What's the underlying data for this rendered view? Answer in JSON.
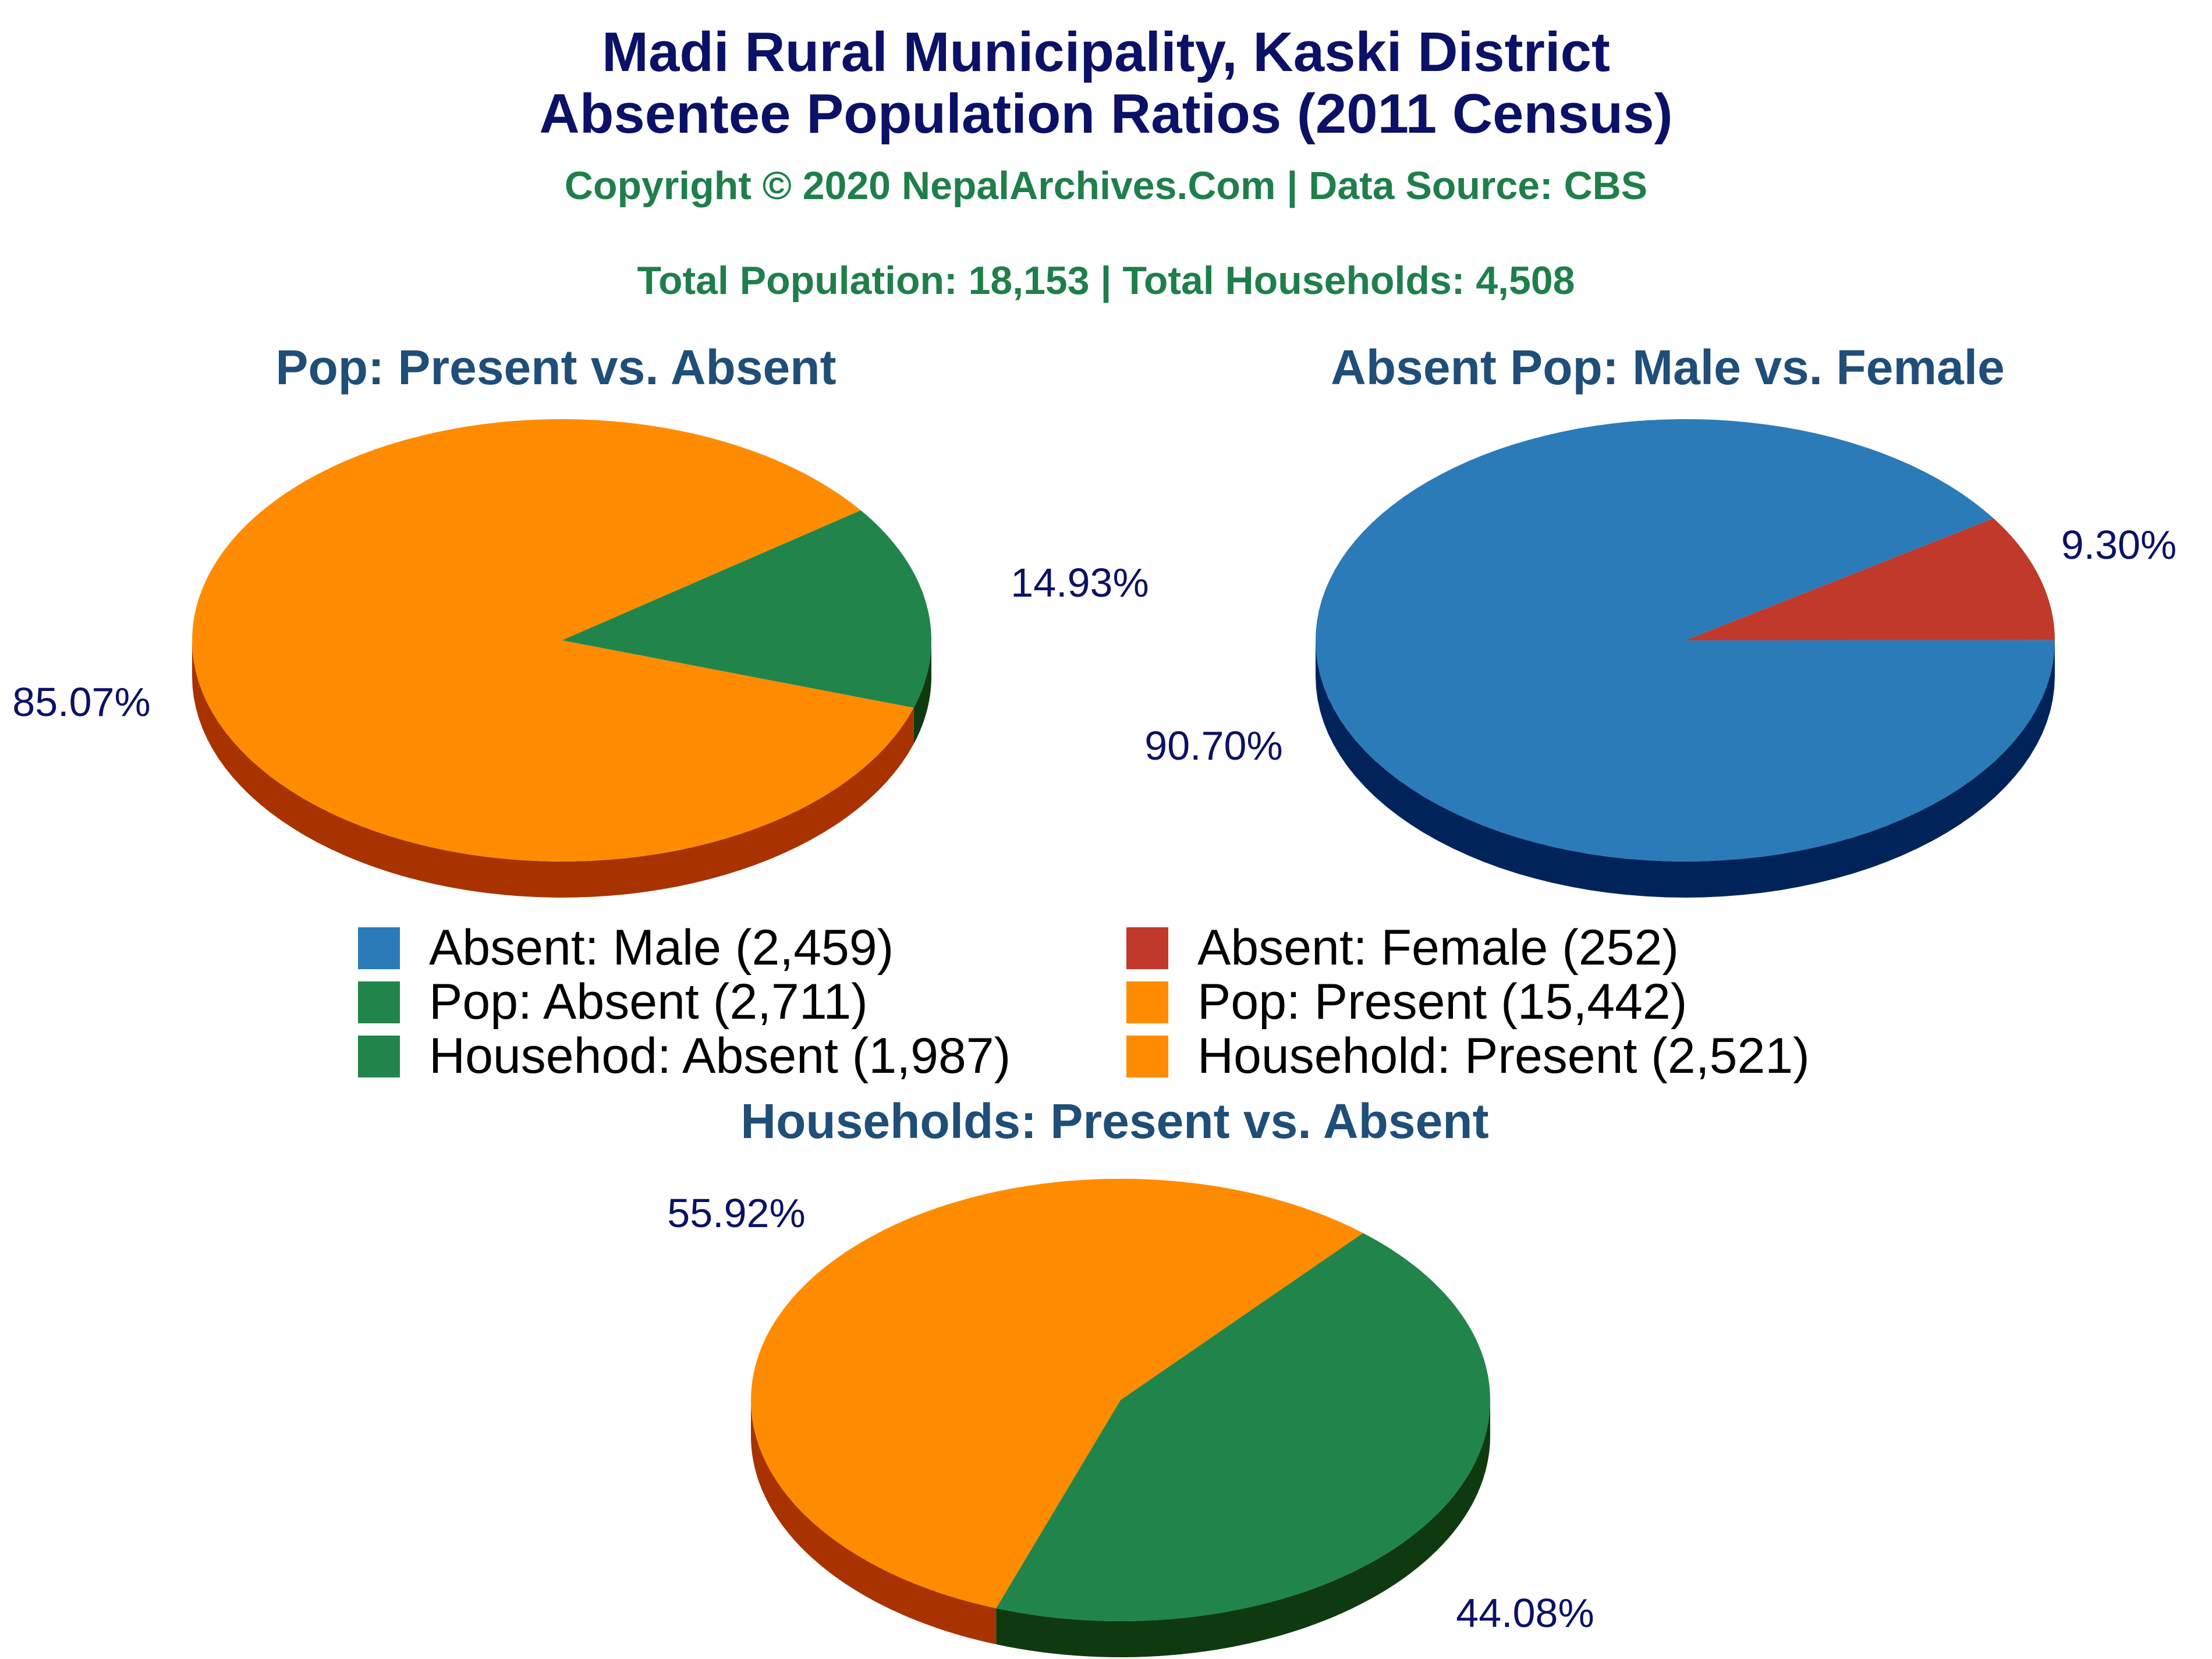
{
  "header": {
    "title_line1": "Madi Rural Municipality, Kaski District",
    "title_line2": "Absentee Population Ratios (2011 Census)",
    "copyright": "Copyright © 2020 NepalArchives.Com | Data Source: CBS",
    "totals": "Total Population: 18,153 | Total Households: 4,508"
  },
  "legend": [
    {
      "label": "Absent: Male (2,459)",
      "color": "#2b7bb9"
    },
    {
      "label": "Absent: Female (252)",
      "color": "#c0392b"
    },
    {
      "label": "Pop: Absent (2,711)",
      "color": "#21854b"
    },
    {
      "label": "Pop: Present (15,442)",
      "color": "#ff8c00"
    },
    {
      "label": "Househod: Absent (1,987)",
      "color": "#21854b"
    },
    {
      "label": "Household: Present (2,521)",
      "color": "#ff8c00"
    }
  ],
  "chart_data": [
    {
      "type": "pie",
      "title": "Pop: Present vs. Absent",
      "slices": [
        {
          "name": "Pop: Absent",
          "value": 2711,
          "label": "14.93%",
          "color": "#21854b",
          "side": "#0f3a10"
        },
        {
          "name": "Pop: Present",
          "value": 15442,
          "label": "85.07%",
          "color": "#ff8c00",
          "side": "#a83300"
        }
      ]
    },
    {
      "type": "pie",
      "title": "Absent Pop: Male vs. Female",
      "slices": [
        {
          "name": "Absent: Female",
          "value": 252,
          "label": "9.30%",
          "color": "#c0392b",
          "side": "#6b0f0f"
        },
        {
          "name": "Absent: Male",
          "value": 2459,
          "label": "90.70%",
          "color": "#2b7bb9",
          "side": "#00245a"
        }
      ]
    },
    {
      "type": "pie",
      "title": "Households: Present vs. Absent",
      "slices": [
        {
          "name": "Househod: Absent",
          "value": 1987,
          "label": "44.08%",
          "color": "#21854b",
          "side": "#0f3a10"
        },
        {
          "name": "Household: Present",
          "value": 2521,
          "label": "55.92%",
          "color": "#ff8c00",
          "side": "#a83300"
        }
      ]
    }
  ]
}
